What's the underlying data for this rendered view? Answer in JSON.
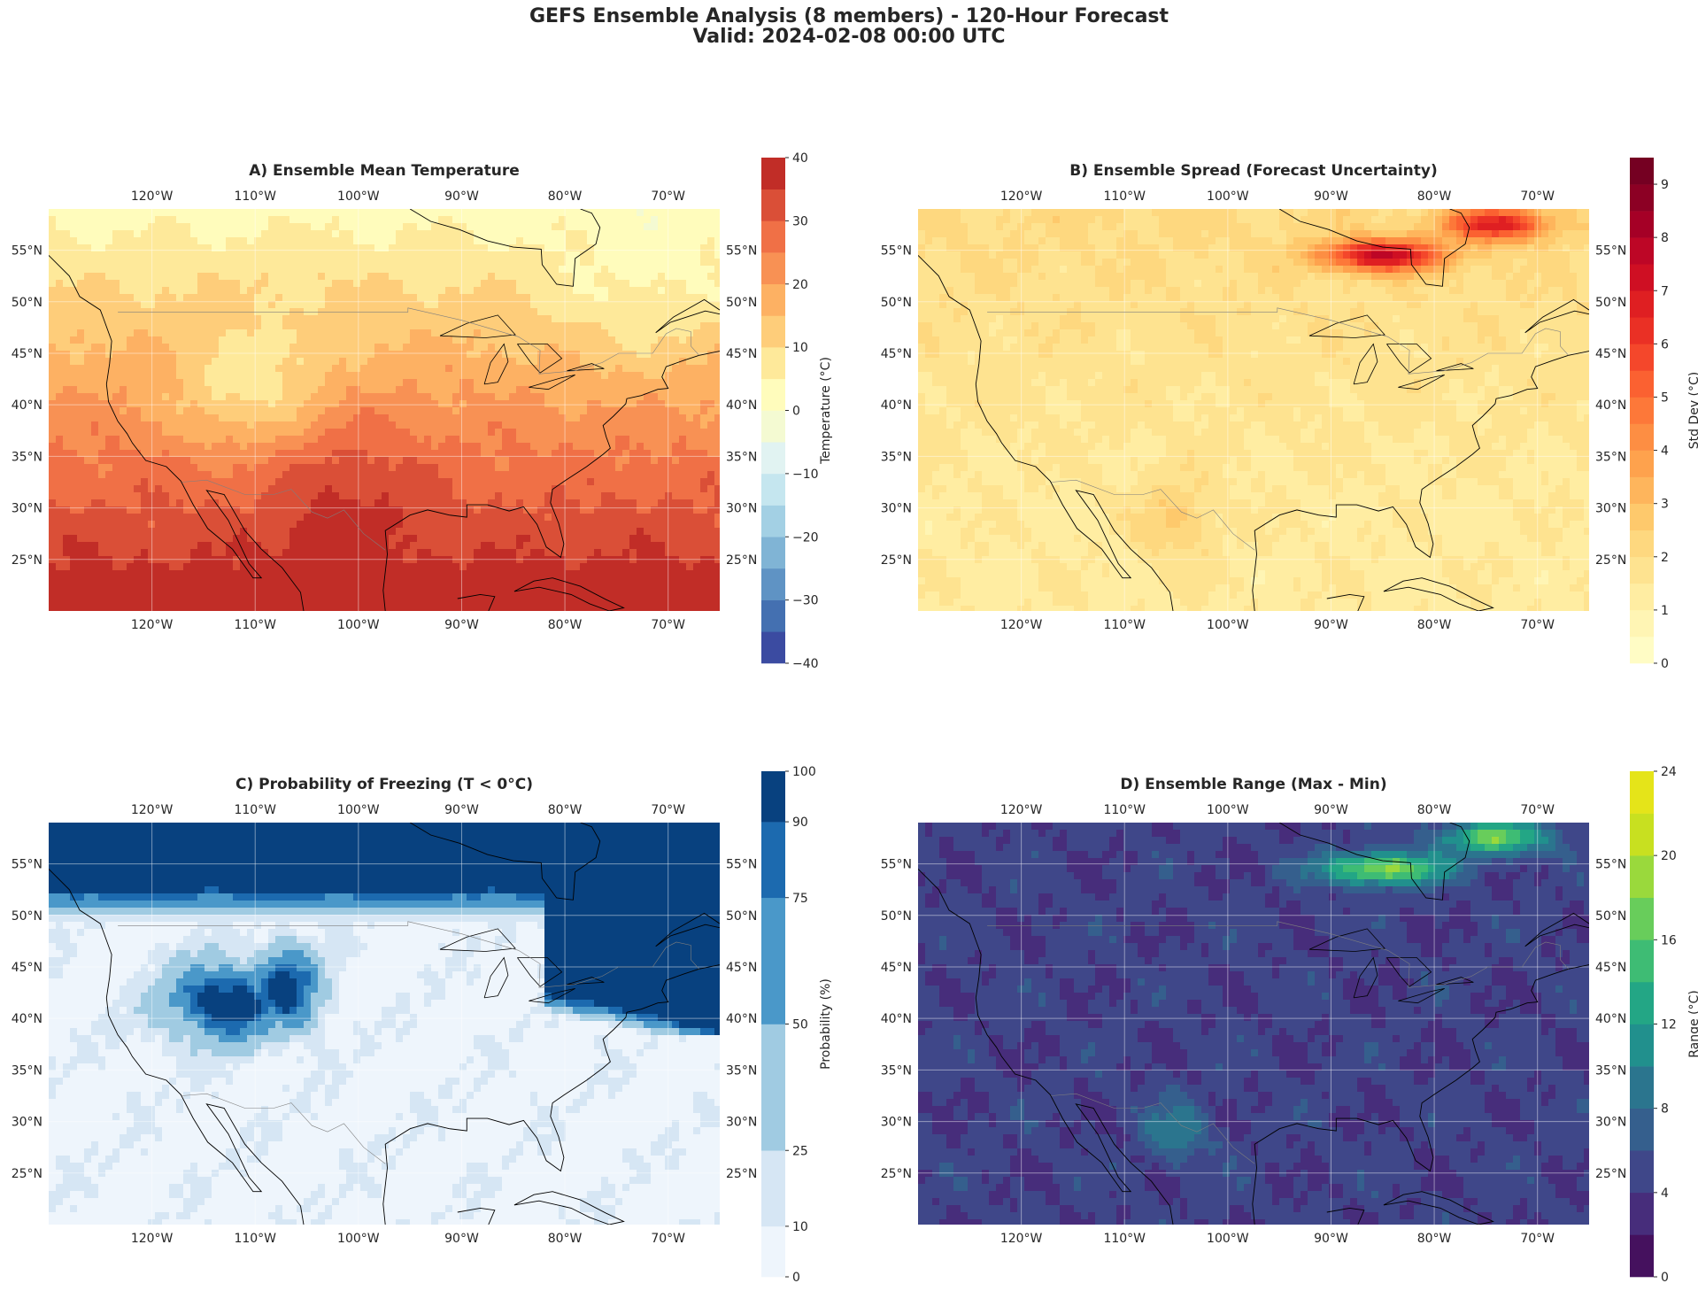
{
  "figure": {
    "title_line1": "GEFS Ensemble Analysis (8 members) - 120-Hour Forecast",
    "title_line2": "Valid: 2024-02-08 00:00 UTC"
  },
  "map_extent": {
    "lon": [
      -130,
      -65
    ],
    "lat": [
      20,
      59
    ]
  },
  "lon_ticks": [
    {
      "value": -120,
      "label": "120°W"
    },
    {
      "value": -110,
      "label": "110°W"
    },
    {
      "value": -100,
      "label": "100°W"
    },
    {
      "value": -90,
      "label": "90°W"
    },
    {
      "value": -80,
      "label": "80°W"
    },
    {
      "value": -70,
      "label": "70°W"
    }
  ],
  "lat_ticks": [
    {
      "value": 25,
      "label": "25°N"
    },
    {
      "value": 30,
      "label": "30°N"
    },
    {
      "value": 35,
      "label": "35°N"
    },
    {
      "value": 40,
      "label": "40°N"
    },
    {
      "value": 45,
      "label": "45°N"
    },
    {
      "value": 50,
      "label": "50°N"
    },
    {
      "value": 55,
      "label": "55°N"
    }
  ],
  "panels": [
    {
      "id": "a",
      "title": "A) Ensemble Mean Temperature",
      "colorbar_label": "Temperature (°C)",
      "levels": [
        -40,
        -35,
        -30,
        -25,
        -20,
        -15,
        -10,
        -5,
        0,
        5,
        10,
        15,
        20,
        25,
        30,
        35,
        40
      ],
      "tick_values": [
        -40,
        -30,
        -20,
        -10,
        0,
        10,
        20,
        30,
        40
      ],
      "tick_labels": [
        "−40",
        "−30",
        "−20",
        "−10",
        "0",
        "10",
        "20",
        "30",
        "40"
      ],
      "colors": [
        "#3b4ba1",
        "#4470b1",
        "#5f93c4",
        "#80b4d5",
        "#a3d0e4",
        "#c5e6ef",
        "#e1f3f2",
        "#f4fad2",
        "#fffcbc",
        "#fee99a",
        "#fecd7a",
        "#fdb163",
        "#f89154",
        "#f07046",
        "#da4f37",
        "#c12d27"
      ],
      "field": "temperature"
    },
    {
      "id": "b",
      "title": "B) Ensemble Spread (Forecast Uncertainty)",
      "colorbar_label": "Std Dev (°C)",
      "levels": [
        0,
        0.5,
        1,
        1.5,
        2,
        2.5,
        3,
        3.5,
        4,
        4.5,
        5,
        5.5,
        6,
        6.5,
        7,
        7.5,
        8,
        8.5,
        9,
        9.5
      ],
      "tick_values": [
        0,
        1,
        2,
        3,
        4,
        5,
        6,
        7,
        8,
        9
      ],
      "tick_labels": [
        "0",
        "1",
        "2",
        "3",
        "4",
        "5",
        "6",
        "7",
        "8",
        "9"
      ],
      "colors": [
        "#fffcc5",
        "#fff5b4",
        "#ffeda2",
        "#fee390",
        "#fed87f",
        "#fec96c",
        "#feb55c",
        "#fea24d",
        "#fd8e43",
        "#fd7839",
        "#fb6131",
        "#f4472b",
        "#ea3025",
        "#df1f22",
        "#cf0f23",
        "#bd0626",
        "#a50026",
        "#8c0024",
        "#750022"
      ],
      "field": "spread"
    },
    {
      "id": "c",
      "title": "C) Probability of Freezing (T < 0°C)",
      "colorbar_label": "Probability (%)",
      "levels": [
        0,
        10,
        25,
        50,
        75,
        90,
        100
      ],
      "tick_values": [
        0,
        10,
        25,
        50,
        75,
        90,
        100
      ],
      "tick_labels": [
        "0",
        "10",
        "25",
        "50",
        "75",
        "90",
        "100"
      ],
      "colors": [
        "#eef5fc",
        "#d6e6f4",
        "#a0cbe2",
        "#4a98c9",
        "#1c6aaf",
        "#08417f"
      ],
      "field": "freeze"
    },
    {
      "id": "d",
      "title": "D) Ensemble Range (Max - Min)",
      "colorbar_label": "Range (°C)",
      "levels": [
        0,
        2,
        4,
        6,
        8,
        10,
        12,
        14,
        16,
        18,
        20,
        22,
        24
      ],
      "tick_values": [
        0,
        4,
        8,
        12,
        16,
        20,
        24
      ],
      "tick_labels": [
        "0",
        "4",
        "8",
        "12",
        "16",
        "20",
        "24"
      ],
      "colors": [
        "#45115e",
        "#472d7b",
        "#3f4789",
        "#355f8d",
        "#2b758e",
        "#21908d",
        "#23a685",
        "#3ebc74",
        "#68cd5b",
        "#9ad93c",
        "#c8e020",
        "#e5e419"
      ],
      "field": "range"
    }
  ]
}
